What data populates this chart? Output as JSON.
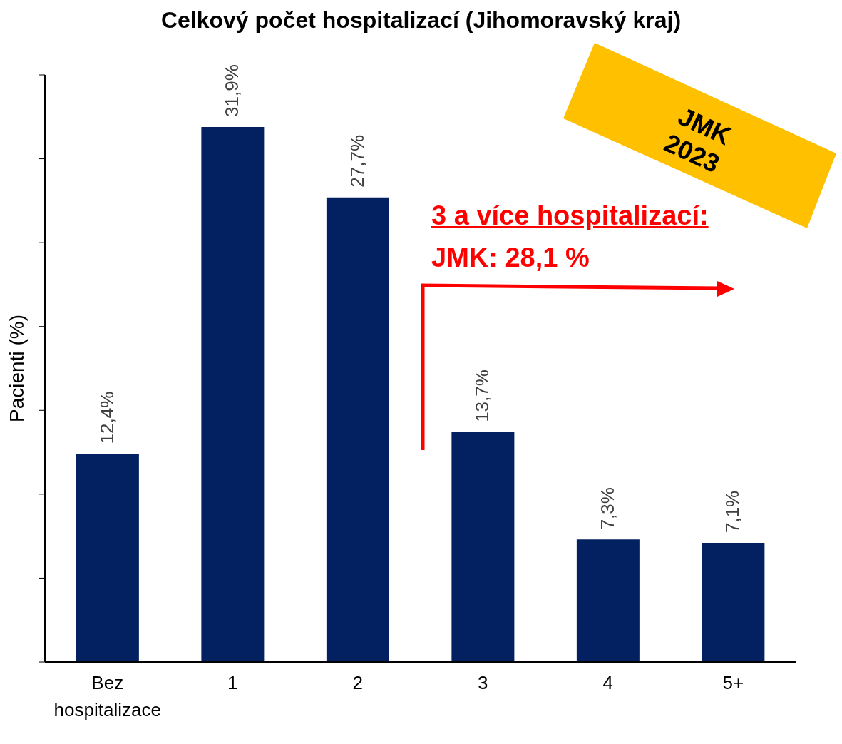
{
  "chart_data": {
    "type": "bar",
    "title": "Celkový počet hospitalizací (Jihomoravský kraj)",
    "ylabel": "Pacienti (%)",
    "categories": [
      "Bez hospitalizace",
      "1",
      "2",
      "3",
      "4",
      "5+"
    ],
    "values": [
      12.4,
      31.9,
      27.7,
      13.7,
      7.3,
      7.1
    ],
    "value_labels": [
      "12,4%",
      "31,9%",
      "27,7%",
      "13,7%",
      "7,3%",
      "7,1%"
    ],
    "color": "#032060",
    "ylim": [
      0,
      35
    ],
    "yticks": [
      {
        "value": 0,
        "label": null
      },
      {
        "value": 5,
        "label": null
      },
      {
        "value": 10,
        "label": null
      },
      {
        "value": 15,
        "label": null
      },
      {
        "value": 20,
        "label": null
      },
      {
        "value": 25,
        "label": null
      },
      {
        "value": 30,
        "label": null
      },
      {
        "value": 35,
        "label": null
      }
    ],
    "tick_labels": "x",
    "annotations": [
      "3 a více hospitalizací:",
      "JMK: 28,1 %",
      "JMK 2023"
    ]
  }
}
